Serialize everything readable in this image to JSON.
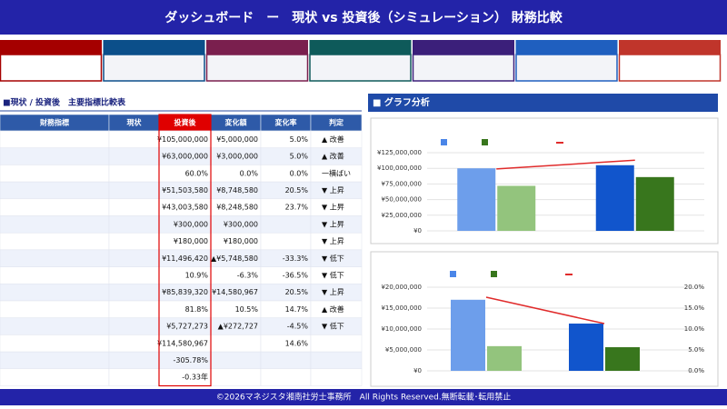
{
  "header": {
    "title": "ダッシュボード　ー　現状 vs 投資後（シミュレーション） 財務比較"
  },
  "table": {
    "title": "■現状 / 投資後　主要指標比較表",
    "columns": [
      "財務指標",
      "現状",
      "投資後",
      "変化額",
      "変化率",
      "判定"
    ],
    "rows": [
      [
        null,
        null,
        "¥105,000,000",
        "¥5,000,000",
        "5.0%",
        "▲ 改善"
      ],
      [
        null,
        null,
        "¥63,000,000",
        "¥3,000,000",
        "5.0%",
        "▲ 改善"
      ],
      [
        null,
        null,
        "60.0%",
        "0.0%",
        "0.0%",
        "一横ばい"
      ],
      [
        null,
        null,
        "¥51,503,580",
        "¥8,748,580",
        "20.5%",
        "▼ 上昇"
      ],
      [
        null,
        null,
        "¥43,003,580",
        "¥8,248,580",
        "23.7%",
        "▼ 上昇"
      ],
      [
        null,
        null,
        "¥300,000",
        "¥300,000",
        null,
        "▼ 上昇"
      ],
      [
        null,
        null,
        "¥180,000",
        "¥180,000",
        null,
        "▼ 上昇"
      ],
      [
        null,
        null,
        "¥11,496,420",
        "▲¥5,748,580",
        "-33.3%",
        "▼ 低下"
      ],
      [
        null,
        null,
        "10.9%",
        "-6.3%",
        "-36.5%",
        "▼ 低下"
      ],
      [
        null,
        null,
        "¥85,839,320",
        "¥14,580,967",
        "20.5%",
        "▼ 上昇"
      ],
      [
        null,
        null,
        "81.8%",
        "10.5%",
        "14.7%",
        "▲ 改善"
      ],
      [
        null,
        null,
        "¥5,727,273",
        "▲¥272,727",
        "-4.5%",
        "▼ 低下"
      ],
      [
        null,
        null,
        "¥114,580,967",
        null,
        "14.6%",
        null
      ],
      [
        null,
        null,
        "-305.78%",
        null,
        null,
        null
      ],
      [
        null,
        null,
        "-0.33年",
        null,
        null,
        null
      ]
    ]
  },
  "graph_panel": {
    "title": "■ グラフ分析"
  },
  "footer": {
    "text": "©2026マネジスタ湘南社労士事務所　All Rights Reserved.無断転載･転用禁止"
  },
  "chart_data": [
    {
      "type": "bar",
      "categories": [
        null,
        null
      ],
      "series": [
        {
          "color": "#4a86e8",
          "point_colors": [
            "#6d9eeb",
            "#1155cc"
          ],
          "values": [
            100000000,
            105000000
          ]
        },
        {
          "color": "#38761d",
          "point_colors": [
            "#93c47d",
            "#38761d"
          ],
          "values": [
            72000000,
            86000000
          ]
        },
        {
          "type": "line",
          "color": "#e02b2b",
          "values": [
            99000000,
            113000000
          ]
        }
      ],
      "ylim": [
        0,
        125000000
      ],
      "yticks": [
        {
          "value": 0,
          "label": "¥0"
        },
        {
          "value": 25000000,
          "label": "¥25,000,000"
        },
        {
          "value": 50000000,
          "label": "¥50,000,000"
        },
        {
          "value": 75000000,
          "label": "¥75,000,000"
        },
        {
          "value": 100000000,
          "label": "¥100,000,000"
        },
        {
          "value": 125000000,
          "label": "¥125,000,000"
        }
      ],
      "grid": true
    },
    {
      "type": "bar",
      "categories": [
        null,
        null
      ],
      "series": [
        {
          "color": "#4a86e8",
          "point_colors": [
            "#6d9eeb",
            "#1155cc"
          ],
          "values": [
            17000000,
            11300000
          ]
        },
        {
          "color": "#38761d",
          "point_colors": [
            "#93c47d",
            "#38761d"
          ],
          "values": [
            5900000,
            5650000
          ]
        },
        {
          "type": "line",
          "color": "#e02b2b",
          "axis": "y2",
          "values": [
            17.6,
            11.3
          ]
        }
      ],
      "ylim": [
        0,
        20000000
      ],
      "yticks": [
        {
          "value": 0,
          "label": "¥0"
        },
        {
          "value": 5000000,
          "label": "¥5,000,000"
        },
        {
          "value": 10000000,
          "label": "¥10,000,000"
        },
        {
          "value": 15000000,
          "label": "¥15,000,000"
        },
        {
          "value": 20000000,
          "label": "¥20,000,000"
        }
      ],
      "y2lim": [
        0,
        20
      ],
      "y2ticks": [
        {
          "value": 0,
          "label": "0.0%"
        },
        {
          "value": 5,
          "label": "5.0%"
        },
        {
          "value": 10,
          "label": "10.0%"
        },
        {
          "value": 15,
          "label": "15.0%"
        },
        {
          "value": 20,
          "label": "20.0%"
        }
      ],
      "grid": true
    }
  ]
}
